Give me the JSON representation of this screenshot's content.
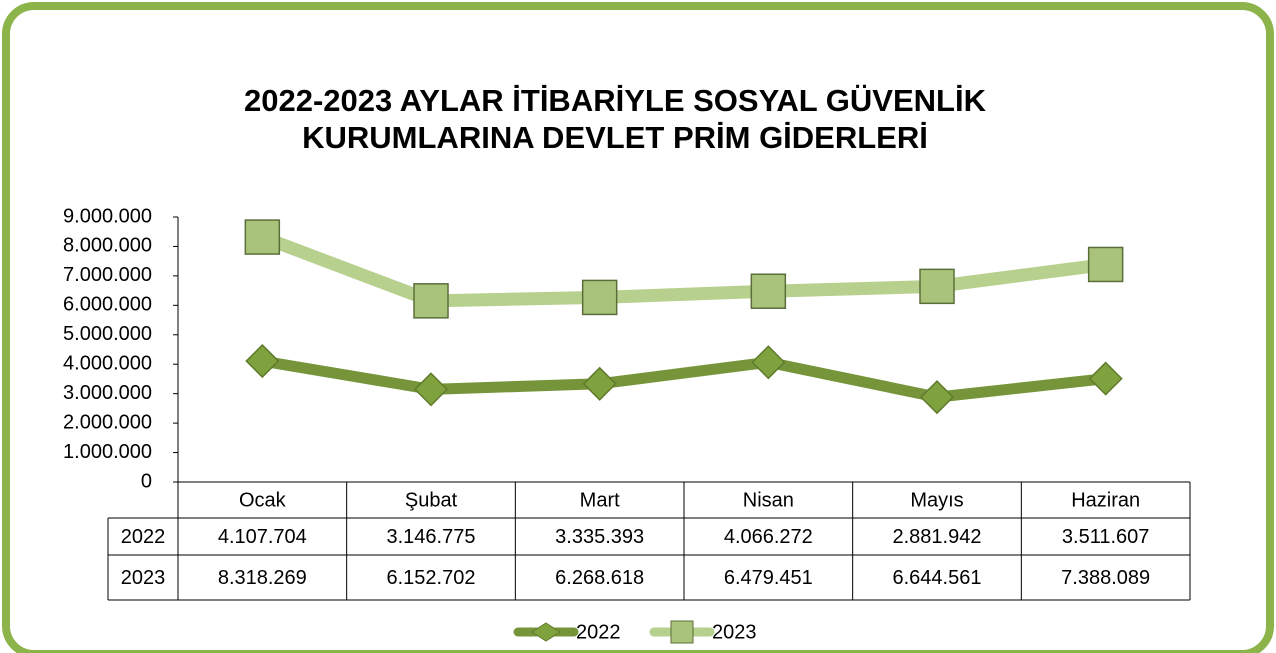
{
  "chart_data": {
    "type": "line",
    "title": [
      "2022-2023 AYLAR İTİBARİYLE SOSYAL GÜVENLİK",
      "KURUMLARINA DEVLET PRİM GİDERLERİ"
    ],
    "categories": [
      "Ocak",
      "Şubat",
      "Mart",
      "Nisan",
      "Mayıs",
      "Haziran"
    ],
    "series": [
      {
        "name": "2022",
        "color": "#76953a",
        "marker": "diamond",
        "values": [
          4107704,
          3146775,
          3335393,
          4066272,
          2881942,
          3511607
        ],
        "value_labels": [
          "4.107.704",
          "3.146.775",
          "3.335.393",
          "4.066.272",
          "2.881.942",
          "3.511.607"
        ]
      },
      {
        "name": "2023",
        "color": "#b7d08e",
        "marker": "square",
        "values": [
          8318269,
          6152702,
          6268618,
          6479451,
          6644561,
          7388089
        ],
        "value_labels": [
          "8.318.269",
          "6.152.702",
          "6.268.618",
          "6.479.451",
          "6.644.561",
          "7.388.089"
        ]
      }
    ],
    "ylim": [
      0,
      9000000
    ],
    "yticks": [
      0,
      {
        "value": 1000000,
        "label": "1.000.000"
      },
      {
        "value": 2000000,
        "label": "2.000.000"
      },
      {
        "value": 3000000,
        "label": "3.000.000"
      },
      {
        "value": 4000000,
        "label": "4.000.000"
      },
      {
        "value": 5000000,
        "label": "5.000.000"
      },
      {
        "value": 6000000,
        "label": "6.000.000"
      },
      {
        "value": 7000000,
        "label": "7.000.000"
      },
      {
        "value": 8000000,
        "label": "8.000.000"
      },
      {
        "value": 9000000,
        "label": "9.000.000"
      }
    ],
    "legend": "bottom",
    "data_table": true
  }
}
